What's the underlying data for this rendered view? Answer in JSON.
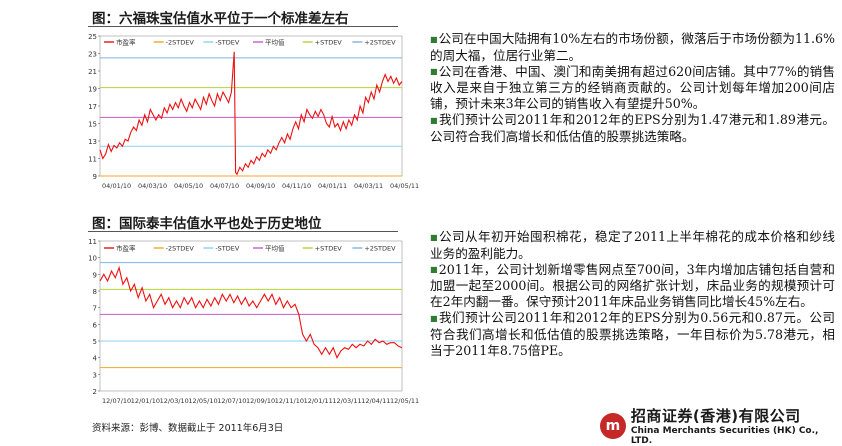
{
  "figures": [
    {
      "title": "图：六福珠宝估值水平位于一个标准差左右",
      "chart_data": {
        "type": "line",
        "ylim": [
          9,
          25
        ],
        "yticks": [
          9,
          11,
          13,
          15,
          17,
          19,
          21,
          23,
          25
        ],
        "xticks": [
          "04/01/10",
          "04/03/10",
          "04/05/10",
          "04/07/10",
          "04/09/10",
          "04/11/10",
          "04/01/11",
          "04/03/11",
          "04/05/11"
        ],
        "legend": [
          "市盈率",
          "-2STDEV",
          "-STDEV",
          "平均值",
          "+STDEV",
          "+2STDEV"
        ],
        "bands": [
          {
            "name": "-2STDEV",
            "value": 9.0,
            "color": "#f5a623"
          },
          {
            "name": "-STDEV",
            "value": 12.4,
            "color": "#8fd0f0"
          },
          {
            "name": "平均值",
            "value": 15.7,
            "color": "#c65cc6"
          },
          {
            "name": "+STDEV",
            "value": 19.1,
            "color": "#b5d334"
          },
          {
            "name": "+2STDEV",
            "value": 22.5,
            "color": "#7fb2e6"
          }
        ],
        "series": [
          {
            "name": "市盈率",
            "color": "#e11",
            "points": [
              [
                0,
                12.0
              ],
              [
                2,
                11.0
              ],
              [
                4,
                11.5
              ],
              [
                6,
                12.6
              ],
              [
                8,
                11.8
              ],
              [
                10,
                12.5
              ],
              [
                12,
                12.2
              ],
              [
                14,
                12.8
              ],
              [
                16,
                12.4
              ],
              [
                18,
                13.2
              ],
              [
                20,
                13.0
              ],
              [
                22,
                14.0
              ],
              [
                24,
                14.6
              ],
              [
                26,
                14.2
              ],
              [
                28,
                15.4
              ],
              [
                30,
                14.8
              ],
              [
                32,
                16.0
              ],
              [
                34,
                15.2
              ],
              [
                36,
                16.6
              ],
              [
                38,
                16.0
              ],
              [
                40,
                15.4
              ],
              [
                42,
                16.0
              ],
              [
                44,
                15.6
              ],
              [
                46,
                16.8
              ],
              [
                48,
                16.2
              ],
              [
                50,
                17.2
              ],
              [
                52,
                16.6
              ],
              [
                54,
                17.4
              ],
              [
                56,
                16.8
              ],
              [
                58,
                17.8
              ],
              [
                60,
                17.0
              ],
              [
                62,
                16.4
              ],
              [
                64,
                17.4
              ],
              [
                66,
                16.8
              ],
              [
                68,
                17.8
              ],
              [
                70,
                17.2
              ],
              [
                72,
                16.6
              ],
              [
                74,
                18.0
              ],
              [
                76,
                17.2
              ],
              [
                78,
                18.4
              ],
              [
                80,
                17.6
              ],
              [
                82,
                17.0
              ],
              [
                84,
                18.4
              ],
              [
                86,
                17.6
              ],
              [
                88,
                18.6
              ],
              [
                90,
                18.0
              ],
              [
                92,
                17.4
              ],
              [
                94,
                18.6
              ],
              [
                96,
                23.2
              ],
              [
                97,
                9.4
              ],
              [
                98,
                9.2
              ],
              [
                100,
                10.0
              ],
              [
                102,
                9.6
              ],
              [
                104,
                10.4
              ],
              [
                106,
                10.0
              ],
              [
                108,
                10.8
              ],
              [
                110,
                10.4
              ],
              [
                112,
                11.2
              ],
              [
                114,
                10.8
              ],
              [
                116,
                11.6
              ],
              [
                118,
                11.2
              ],
              [
                120,
                12.0
              ],
              [
                122,
                11.6
              ],
              [
                124,
                12.4
              ],
              [
                126,
                12.0
              ],
              [
                128,
                12.8
              ],
              [
                130,
                13.4
              ],
              [
                132,
                12.8
              ],
              [
                134,
                13.8
              ],
              [
                136,
                13.2
              ],
              [
                138,
                14.4
              ],
              [
                140,
                15.2
              ],
              [
                142,
                14.4
              ],
              [
                144,
                16.0
              ],
              [
                146,
                15.2
              ],
              [
                148,
                16.6
              ],
              [
                150,
                16.0
              ],
              [
                152,
                15.6
              ],
              [
                154,
                16.4
              ],
              [
                156,
                15.8
              ],
              [
                158,
                16.6
              ],
              [
                160,
                16.0
              ],
              [
                162,
                15.0
              ],
              [
                164,
                14.6
              ],
              [
                166,
                15.8
              ],
              [
                168,
                14.6
              ],
              [
                170,
                15.0
              ],
              [
                172,
                14.2
              ],
              [
                174,
                15.2
              ],
              [
                176,
                14.4
              ],
              [
                178,
                15.4
              ],
              [
                180,
                14.8
              ],
              [
                182,
                16.0
              ],
              [
                184,
                15.4
              ],
              [
                186,
                17.0
              ],
              [
                188,
                16.2
              ],
              [
                190,
                18.0
              ],
              [
                192,
                17.4
              ],
              [
                194,
                18.6
              ],
              [
                196,
                17.8
              ],
              [
                198,
                19.4
              ],
              [
                200,
                18.6
              ],
              [
                202,
                19.8
              ],
              [
                204,
                20.6
              ],
              [
                206,
                19.8
              ],
              [
                208,
                20.4
              ],
              [
                210,
                19.6
              ],
              [
                212,
                20.2
              ],
              [
                214,
                19.4
              ],
              [
                216,
                19.8
              ]
            ]
          }
        ]
      }
    },
    {
      "title": "图：国际泰丰估值水平也处于历史地位",
      "chart_data": {
        "type": "line",
        "ylim": [
          2,
          11
        ],
        "yticks": [
          2,
          3,
          4,
          5,
          6,
          7,
          8,
          9,
          10,
          11
        ],
        "xticks": [
          "12/07/10",
          "12/01/10",
          "12/03/10",
          "12/05/10",
          "12/07/10",
          "12/09/10",
          "12/11/10",
          "12/01/11",
          "12/03/11",
          "12/04/11",
          "12/05/11"
        ],
        "legend": [
          "市盈率",
          "-2STDEV",
          "-STDEV",
          "平均值",
          "+STDEV",
          "+2STDEV"
        ],
        "bands": [
          {
            "name": "-2STDEV",
            "value": 3.4,
            "color": "#f5a623"
          },
          {
            "name": "-STDEV",
            "value": 5.0,
            "color": "#8fd0f0"
          },
          {
            "name": "平均值",
            "value": 6.6,
            "color": "#c65cc6"
          },
          {
            "name": "+STDEV",
            "value": 8.1,
            "color": "#b5d334"
          },
          {
            "name": "+2STDEV",
            "value": 9.7,
            "color": "#7fb2e6"
          }
        ],
        "series": [
          {
            "name": "市盈率",
            "color": "#e11",
            "points": [
              [
                0,
                8.6
              ],
              [
                3,
                9.0
              ],
              [
                6,
                8.6
              ],
              [
                9,
                9.2
              ],
              [
                12,
                8.8
              ],
              [
                15,
                9.4
              ],
              [
                18,
                8.4
              ],
              [
                21,
                8.8
              ],
              [
                24,
                8.0
              ],
              [
                27,
                8.4
              ],
              [
                30,
                7.6
              ],
              [
                33,
                8.2
              ],
              [
                36,
                7.4
              ],
              [
                39,
                7.8
              ],
              [
                42,
                7.0
              ],
              [
                45,
                7.4
              ],
              [
                48,
                7.8
              ],
              [
                51,
                7.2
              ],
              [
                54,
                7.6
              ],
              [
                57,
                7.0
              ],
              [
                60,
                7.4
              ],
              [
                63,
                7.0
              ],
              [
                66,
                7.6
              ],
              [
                69,
                7.2
              ],
              [
                72,
                7.6
              ],
              [
                75,
                7.0
              ],
              [
                78,
                7.4
              ],
              [
                81,
                7.0
              ],
              [
                84,
                7.5
              ],
              [
                87,
                7.1
              ],
              [
                90,
                7.6
              ],
              [
                93,
                7.2
              ],
              [
                96,
                7.8
              ],
              [
                99,
                7.4
              ],
              [
                102,
                7.8
              ],
              [
                105,
                7.3
              ],
              [
                108,
                7.7
              ],
              [
                111,
                7.2
              ],
              [
                114,
                7.6
              ],
              [
                117,
                7.1
              ],
              [
                120,
                7.4
              ],
              [
                123,
                7.0
              ],
              [
                126,
                7.4
              ],
              [
                129,
                7.8
              ],
              [
                132,
                7.4
              ],
              [
                135,
                7.8
              ],
              [
                138,
                7.2
              ],
              [
                141,
                7.6
              ],
              [
                144,
                7.0
              ],
              [
                147,
                7.4
              ],
              [
                150,
                7.0
              ],
              [
                153,
                7.2
              ],
              [
                156,
                6.6
              ],
              [
                159,
                5.4
              ],
              [
                162,
                5.0
              ],
              [
                165,
                5.4
              ],
              [
                168,
                4.8
              ],
              [
                171,
                4.6
              ],
              [
                174,
                4.2
              ],
              [
                177,
                4.6
              ],
              [
                180,
                4.2
              ],
              [
                183,
                4.6
              ],
              [
                186,
                4.0
              ],
              [
                189,
                4.4
              ],
              [
                192,
                4.6
              ],
              [
                195,
                4.5
              ],
              [
                198,
                4.8
              ],
              [
                201,
                4.6
              ],
              [
                204,
                4.8
              ],
              [
                207,
                4.7
              ],
              [
                210,
                5.0
              ],
              [
                213,
                4.8
              ],
              [
                216,
                5.1
              ],
              [
                219,
                4.9
              ],
              [
                222,
                5.0
              ],
              [
                225,
                4.8
              ],
              [
                228,
                4.9
              ],
              [
                231,
                4.9
              ],
              [
                234,
                4.7
              ],
              [
                237,
                4.6
              ]
            ]
          }
        ]
      }
    }
  ],
  "paragraphs1": [
    "公司在中国大陆拥有10%左右的市场份额，微落后于市场份额为11.6%的周大福，位居行业第二。",
    "公司在香港、中国、澳门和南美拥有超过620间店铺。其中77%的销售收入是来自于独立第三方的经销商贡献的。公司计划每年增加200间店铺，预计未来3年公司的销售收入有望提升50%。",
    "我们预计公司2011年和2012年的EPS分别为1.47港元和1.89港元。公司符合我们高增长和低估值的股票挑选策略。"
  ],
  "paragraphs2": [
    "公司从年初开始囤积棉花，稳定了2011上半年棉花的成本价格和纱线业务的盈利能力。",
    "2011年，公司计划新增零售网点至700间，3年内增加店铺包括自营和加盟一起至2000间。根据公司的网络扩张计划，床品业务的规模预计可在2年内翻一番。保守预计2011年床品业务销售同比增长45%左右。",
    "我们预计公司2011年和2012年的EPS分别为0.56元和0.87元。公司符合我们高增长和低估值的股票挑选策略，一年目标价为5.78港元，相当于2011年8.75倍PE。"
  ],
  "source": "资料来源：彭博、数据截止于 2011年6月3日",
  "logo": {
    "mark": "m",
    "cn": "招商证券(香港)有限公司",
    "en": "China Merchants Securities (HK) Co., LTD."
  }
}
